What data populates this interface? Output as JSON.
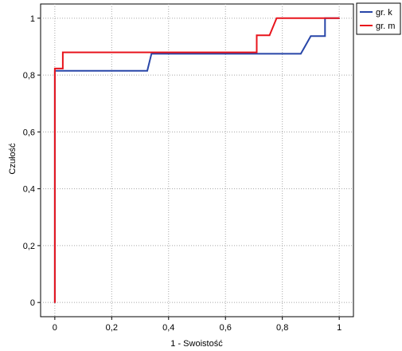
{
  "chart_data": {
    "type": "line",
    "title": "",
    "xlabel": "1 - Swoistość",
    "ylabel": "Czułość",
    "xlim": [
      -0.05,
      1.05
    ],
    "ylim": [
      -0.05,
      1.05
    ],
    "grid": true,
    "legend_position": "top-right",
    "x_ticks": [
      {
        "value": 0,
        "label": "0"
      },
      {
        "value": 0.2,
        "label": "0,2"
      },
      {
        "value": 0.4,
        "label": "0,4"
      },
      {
        "value": 0.6,
        "label": "0,6"
      },
      {
        "value": 0.8,
        "label": "0,8"
      },
      {
        "value": 1,
        "label": "1"
      }
    ],
    "y_ticks": [
      {
        "value": 0,
        "label": "0"
      },
      {
        "value": 0.2,
        "label": "0,2"
      },
      {
        "value": 0.4,
        "label": "0,4"
      },
      {
        "value": 0.6,
        "label": "0,6"
      },
      {
        "value": 0.8,
        "label": "0,8"
      },
      {
        "value": 1,
        "label": "1"
      }
    ],
    "series": [
      {
        "name": "gr. k",
        "color": "#2846a8",
        "x": [
          0,
          0,
          0.325,
          0.34,
          0.865,
          0.9,
          0.95,
          0.95,
          1
        ],
        "y": [
          0,
          0.815,
          0.815,
          0.875,
          0.875,
          0.937,
          0.937,
          1,
          1
        ]
      },
      {
        "name": "gr. m",
        "color": "#e8141c",
        "x": [
          0,
          0,
          0.028,
          0.028,
          0.71,
          0.71,
          0.755,
          0.78,
          1
        ],
        "y": [
          0,
          0.823,
          0.823,
          0.88,
          0.88,
          0.94,
          0.94,
          1,
          1
        ]
      }
    ]
  }
}
